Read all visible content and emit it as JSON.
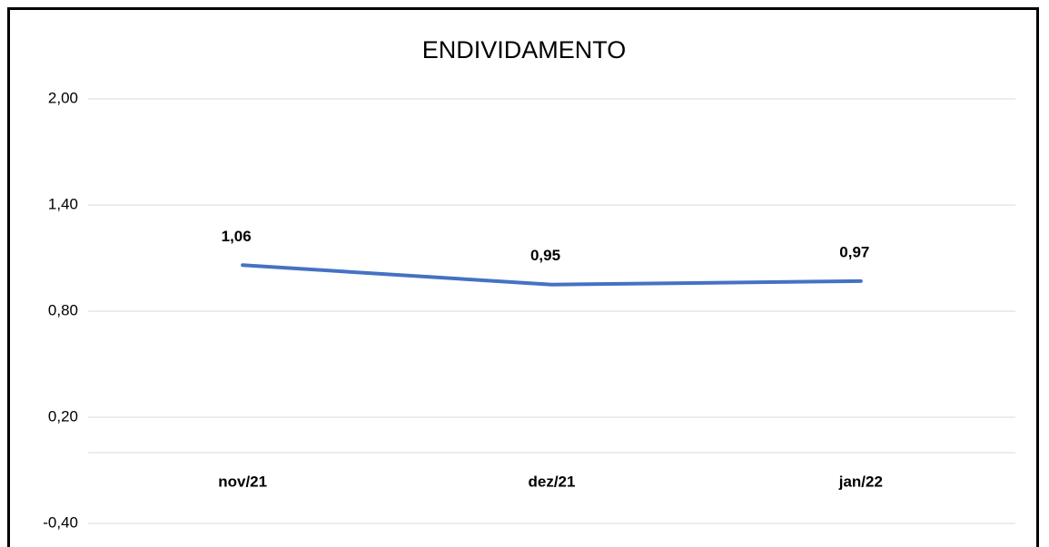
{
  "chart_data": {
    "type": "line",
    "title": "ENDIVIDAMENTO",
    "categories": [
      "nov/21",
      "dez/21",
      "jan/22"
    ],
    "series": [
      {
        "name": "ENDIVIDAMENTO",
        "color": "#4472c4",
        "values": [
          1.06,
          0.95,
          0.97
        ],
        "value_labels": [
          "1,06",
          "0,95",
          "0,97"
        ]
      }
    ],
    "ylim": [
      -0.4,
      2.0
    ],
    "yticks": [
      {
        "value": -0.4,
        "label": "-0,40"
      },
      {
        "value": 0.2,
        "label": "0,20"
      },
      {
        "value": 0.8,
        "label": "0,80"
      },
      {
        "value": 1.4,
        "label": "1,40"
      },
      {
        "value": 2.0,
        "label": "2,00"
      }
    ],
    "grid": true
  }
}
